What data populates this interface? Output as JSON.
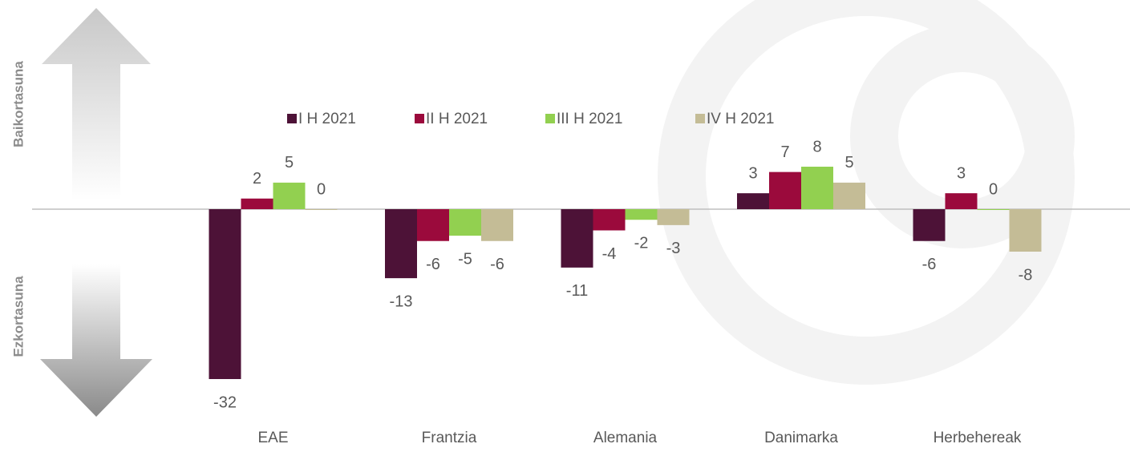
{
  "chart_data": {
    "type": "bar",
    "side_labels": {
      "positive": "Baikortasuna",
      "negative": "Ezkortasuna"
    },
    "categories": [
      "EAE",
      "Frantzia",
      "Alemania",
      "Danimarka",
      "Herbehereak"
    ],
    "series": [
      {
        "name": "I H 2021",
        "color": "#4d1237",
        "values": [
          -32,
          -13,
          -11,
          3,
          -6
        ]
      },
      {
        "name": "II H 2021",
        "color": "#9b0a3c",
        "values": [
          2,
          -6,
          -4,
          7,
          3
        ]
      },
      {
        "name": "III H 2021",
        "color": "#92d050",
        "values": [
          5,
          -5,
          -2,
          8,
          0
        ]
      },
      {
        "name": "IV H 2021",
        "color": "#c4bc96",
        "values": [
          0,
          -6,
          -3,
          5,
          -8
        ]
      }
    ]
  }
}
